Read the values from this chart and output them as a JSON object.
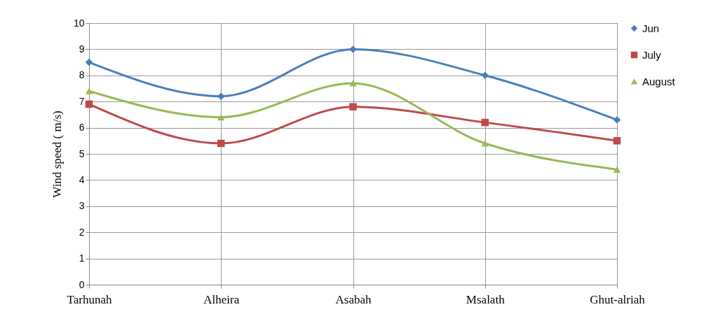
{
  "chart_data": {
    "type": "line",
    "ylabel": "Wind speed ( m/s)",
    "categories": [
      "Tarhunah",
      "Alheira",
      "Asabah",
      "Msalath",
      "Ghut-alriah"
    ],
    "series": [
      {
        "name": "Jun",
        "color": "#4a7ebb",
        "marker": "diamond",
        "values": [
          8.5,
          7.2,
          9.0,
          8.0,
          6.3
        ]
      },
      {
        "name": "July",
        "color": "#be4b48",
        "marker": "square",
        "values": [
          6.9,
          5.4,
          6.8,
          6.2,
          5.5
        ]
      },
      {
        "name": "August",
        "color": "#98b954",
        "marker": "triangle",
        "values": [
          7.4,
          6.4,
          7.7,
          5.4,
          4.4
        ]
      }
    ],
    "ylim": [
      0,
      10
    ],
    "yticks": [
      0,
      1,
      2,
      3,
      4,
      5,
      6,
      7,
      8,
      9,
      10
    ],
    "grid": true,
    "legend": "top right"
  }
}
